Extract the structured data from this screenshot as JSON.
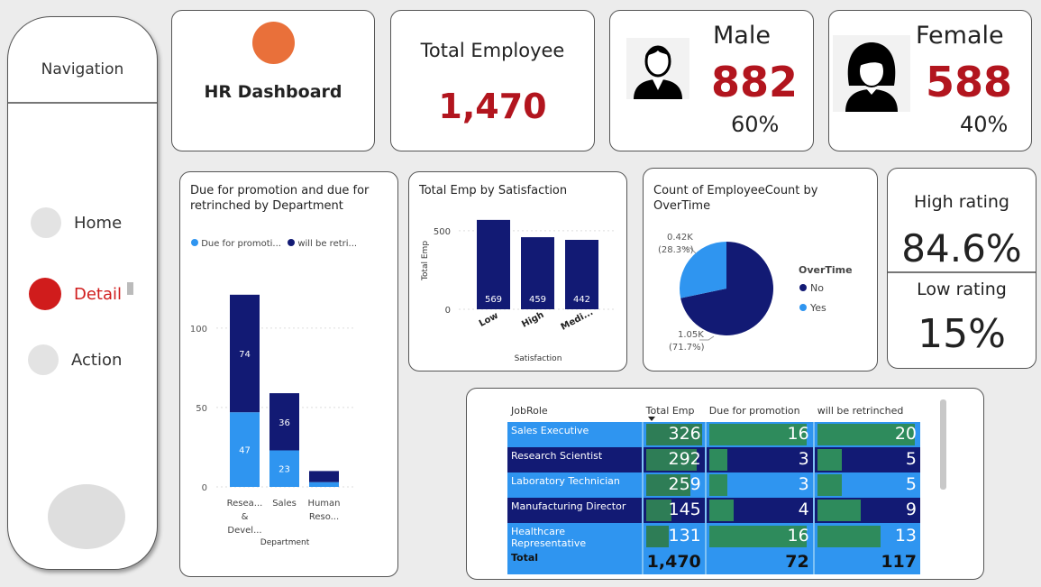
{
  "nav": {
    "title": "Navigation",
    "items": [
      {
        "label": "Home",
        "active": false
      },
      {
        "label": "Detail",
        "active": true
      },
      {
        "label": "Action",
        "active": false
      }
    ]
  },
  "header": {
    "title": "HR Dashboard",
    "logo_color": "#e9703a"
  },
  "total_card": {
    "label": "Total Employee",
    "value": "1,470"
  },
  "male_card": {
    "label": "Male",
    "value": "882",
    "pct": "60%"
  },
  "female_card": {
    "label": "Female",
    "value": "588",
    "pct": "40%"
  },
  "rating_card": {
    "high_label": "High rating",
    "high_value": "84.6%",
    "low_label": "Low rating",
    "low_value": "15%"
  },
  "colors": {
    "dark_blue": "#121a74",
    "light_blue": "#2f95f0",
    "red": "#b2151e",
    "green": "#2e8b5c",
    "nav_active": "#d01c1c"
  },
  "chart_data": [
    {
      "type": "bar",
      "title": "Due for promotion and due for retrinched by Department",
      "xlabel": "Department",
      "ylabel": "",
      "legend": [
        "Due for promoti...",
        "will be retri..."
      ],
      "categories": [
        "Resea... & Devel...",
        "Sales",
        "Human Reso..."
      ],
      "cat_lines": [
        [
          "Resea...",
          "&",
          "Devel..."
        ],
        [
          "Sales"
        ],
        [
          "Human",
          "Reso..."
        ]
      ],
      "series": [
        {
          "name": "Due for promoti...",
          "values": [
            47,
            23,
            3
          ]
        },
        {
          "name": "will be retri...",
          "values": [
            74,
            36,
            7
          ]
        }
      ],
      "data_labels": [
        [
          "47",
          "74"
        ],
        [
          "23",
          "36"
        ],
        [
          "",
          ""
        ]
      ],
      "yticks": [
        "0",
        "50",
        "100"
      ],
      "ylim": [
        0,
        130
      ],
      "stacked": true
    },
    {
      "type": "bar",
      "title": "Total Emp by Satisfaction",
      "xlabel": "Satisfaction",
      "ylabel": "Total Emp",
      "categories": [
        "Low",
        "High",
        "Medi..."
      ],
      "values": [
        569,
        459,
        442
      ],
      "yticks": [
        "0",
        "500"
      ],
      "ylim": [
        0,
        620
      ]
    },
    {
      "type": "pie",
      "title": "Count of EmployeeCount by OverTime",
      "legend_title": "OverTime",
      "slices": [
        {
          "name": "No",
          "value": 1054,
          "label": "1.05K",
          "pct": "(71.7%)"
        },
        {
          "name": "Yes",
          "value": 416,
          "label": "0.42K",
          "pct": "(28.3%)"
        }
      ]
    }
  ],
  "table": {
    "headers": [
      "JobRole",
      "Total Emp",
      "Due for promotion",
      "will be retrinched"
    ],
    "rows": [
      {
        "role": "Sales Executive",
        "total": "326",
        "promo": "16",
        "retr": "20",
        "t": 326,
        "p": 16,
        "r": 20
      },
      {
        "role": "Research Scientist",
        "total": "292",
        "promo": "3",
        "retr": "5",
        "t": 292,
        "p": 3,
        "r": 5
      },
      {
        "role": "Laboratory Technician",
        "total": "259",
        "promo": "3",
        "retr": "5",
        "t": 259,
        "p": 3,
        "r": 5
      },
      {
        "role": "Manufacturing Director",
        "total": "145",
        "promo": "4",
        "retr": "9",
        "t": 145,
        "p": 4,
        "r": 9
      },
      {
        "role": "Healthcare Representative",
        "total": "131",
        "promo": "16",
        "retr": "13",
        "t": 131,
        "p": 16,
        "r": 13
      }
    ],
    "total": {
      "label": "Total",
      "total": "1,470",
      "promo": "72",
      "retr": "117"
    }
  }
}
